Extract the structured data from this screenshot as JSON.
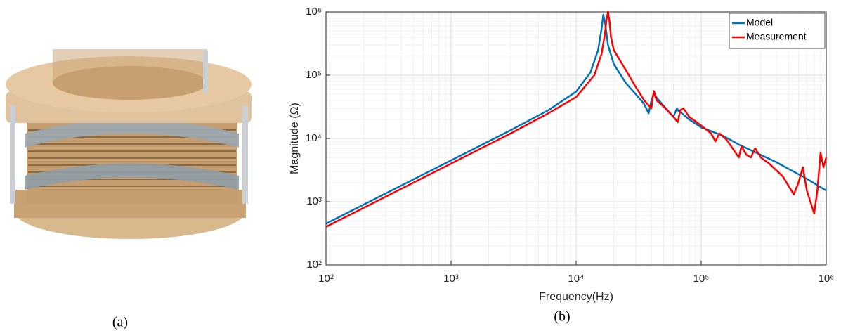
{
  "captions": [
    "(a)",
    "(b)"
  ],
  "chart_data": {
    "type": "line",
    "xlabel": "Frequency(Hz)",
    "ylabel": "Magnitude (Ω)",
    "xscale": "log",
    "yscale": "log",
    "xlim": [
      100,
      1000000
    ],
    "ylim": [
      100,
      1000000
    ],
    "xticks": [
      {
        "value": 100,
        "label": "10²"
      },
      {
        "value": 1000,
        "label": "10³"
      },
      {
        "value": 10000,
        "label": "10⁴"
      },
      {
        "value": 100000,
        "label": "10⁵"
      },
      {
        "value": 1000000,
        "label": "10⁶"
      }
    ],
    "yticks": [
      {
        "value": 100,
        "label": "10²"
      },
      {
        "value": 1000,
        "label": "10³"
      },
      {
        "value": 10000,
        "label": "10⁴"
      },
      {
        "value": 100000,
        "label": "10⁵"
      },
      {
        "value": 1000000,
        "label": "10⁶"
      }
    ],
    "grid": true,
    "minor_grid": true,
    "legend": "upper right",
    "series": [
      {
        "name": "Model",
        "color": "#0072bd",
        "x": [
          100,
          300,
          1000,
          3000,
          6000,
          10000,
          13000,
          15000,
          16000,
          16500,
          17000,
          18000,
          20000,
          25000,
          30000,
          35000,
          38000,
          40000,
          42000,
          45000,
          50000,
          60000,
          64000,
          66000,
          70000,
          80000,
          100000,
          120000,
          150000,
          200000,
          250000,
          300000,
          400000,
          500000,
          700000,
          1000000
        ],
        "values": [
          450,
          1350,
          4500,
          13500,
          28000,
          55000,
          110000,
          250000,
          550000,
          900000,
          700000,
          300000,
          150000,
          75000,
          50000,
          35000,
          25000,
          40000,
          50000,
          42000,
          33000,
          22000,
          30000,
          27000,
          25000,
          20000,
          15000,
          13000,
          11000,
          8000,
          6500,
          5500,
          4200,
          3300,
          2300,
          1500
        ]
      },
      {
        "name": "Measurement",
        "color": "#ff0000",
        "x": [
          100,
          300,
          1000,
          3000,
          6000,
          10000,
          14000,
          16000,
          17000,
          17500,
          18000,
          18500,
          19000,
          20000,
          25000,
          30000,
          35000,
          40000,
          41000,
          42000,
          44000,
          50000,
          60000,
          65000,
          68000,
          72000,
          80000,
          100000,
          120000,
          130000,
          140000,
          160000,
          200000,
          210000,
          230000,
          250000,
          270000,
          300000,
          350000,
          450000,
          550000,
          600000,
          650000,
          700000,
          800000,
          850000,
          900000,
          950000,
          1000000
        ],
        "values": [
          400,
          1200,
          4000,
          12000,
          25000,
          45000,
          100000,
          220000,
          450000,
          750000,
          1000000,
          700000,
          400000,
          250000,
          120000,
          65000,
          40000,
          30000,
          45000,
          56000,
          40000,
          32000,
          22000,
          18000,
          28000,
          30000,
          22000,
          16000,
          12000,
          9000,
          12000,
          9500,
          5000,
          7500,
          5500,
          5000,
          7000,
          5000,
          4000,
          2500,
          1300,
          2000,
          3500,
          1500,
          650,
          1500,
          6000,
          3500,
          5000
        ]
      }
    ]
  }
}
